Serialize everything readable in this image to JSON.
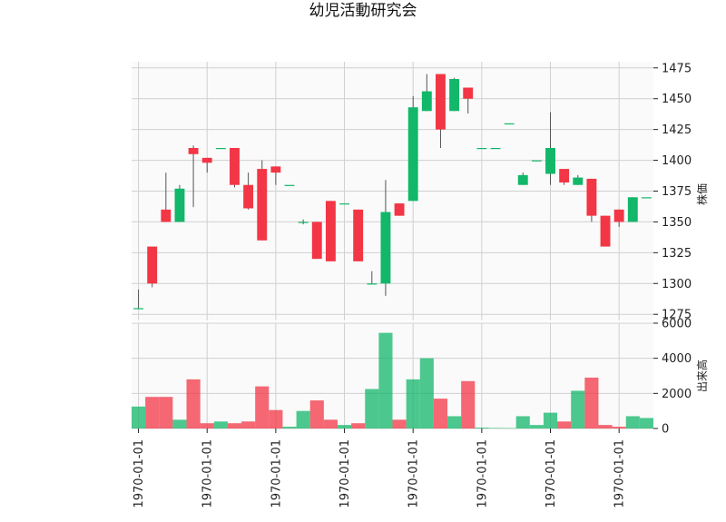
{
  "chart_data": {
    "type": "candlestick",
    "title": "幼児活動研究会",
    "x_tick_labels": [
      "1970-01-01",
      "1970-01-01",
      "1970-01-01",
      "1970-01-01",
      "1970-01-01",
      "1970-01-01",
      "1970-01-01",
      "1970-01-01"
    ],
    "price": {
      "ylabel": "株価",
      "ylim": [
        1270,
        1480
      ],
      "ticks": [
        1275,
        1300,
        1325,
        1350,
        1375,
        1400,
        1425,
        1450,
        1475
      ]
    },
    "volume": {
      "ylabel": "出来高",
      "ylim": [
        0,
        6000
      ],
      "ticks": [
        0,
        2000,
        4000,
        6000
      ]
    },
    "up_color": "#12b76a",
    "down_color": "#f23645",
    "grid": true,
    "candles": [
      {
        "o": 1280,
        "h": 1295,
        "l": 1280,
        "c": 1280,
        "v": 1250
      },
      {
        "o": 1330,
        "h": 1330,
        "l": 1297,
        "c": 1300,
        "v": 1800
      },
      {
        "o": 1360,
        "h": 1390,
        "l": 1350,
        "c": 1350,
        "v": 1800
      },
      {
        "o": 1350,
        "h": 1380,
        "l": 1350,
        "c": 1377,
        "v": 500
      },
      {
        "o": 1410,
        "h": 1412,
        "l": 1362,
        "c": 1405,
        "v": 2800
      },
      {
        "o": 1402,
        "h": 1402,
        "l": 1390,
        "c": 1398,
        "v": 300
      },
      {
        "o": 1410,
        "h": 1410,
        "l": 1410,
        "c": 1410,
        "v": 400
      },
      {
        "o": 1410,
        "h": 1410,
        "l": 1378,
        "c": 1380,
        "v": 300
      },
      {
        "o": 1380,
        "h": 1390,
        "l": 1360,
        "c": 1361,
        "v": 400
      },
      {
        "o": 1393,
        "h": 1400,
        "l": 1335,
        "c": 1335,
        "v": 2400
      },
      {
        "o": 1395,
        "h": 1395,
        "l": 1380,
        "c": 1390,
        "v": 1050
      },
      {
        "o": 1380,
        "h": 1380,
        "l": 1380,
        "c": 1380,
        "v": 100
      },
      {
        "o": 1350,
        "h": 1352,
        "l": 1348,
        "c": 1350,
        "v": 1000
      },
      {
        "o": 1350,
        "h": 1350,
        "l": 1320,
        "c": 1320,
        "v": 1600
      },
      {
        "o": 1367,
        "h": 1367,
        "l": 1318,
        "c": 1318,
        "v": 500
      },
      {
        "o": 1365,
        "h": 1365,
        "l": 1365,
        "c": 1365,
        "v": 200
      },
      {
        "o": 1360,
        "h": 1360,
        "l": 1318,
        "c": 1318,
        "v": 300
      },
      {
        "o": 1300,
        "h": 1310,
        "l": 1300,
        "c": 1300,
        "v": 2250
      },
      {
        "o": 1300,
        "h": 1384,
        "l": 1290,
        "c": 1358,
        "v": 5450
      },
      {
        "o": 1365,
        "h": 1365,
        "l": 1355,
        "c": 1355,
        "v": 500
      },
      {
        "o": 1367,
        "h": 1452,
        "l": 1367,
        "c": 1443,
        "v": 2800
      },
      {
        "o": 1440,
        "h": 1470,
        "l": 1440,
        "c": 1456,
        "v": 4000
      },
      {
        "o": 1470,
        "h": 1470,
        "l": 1410,
        "c": 1425,
        "v": 1700
      },
      {
        "o": 1440,
        "h": 1467,
        "l": 1440,
        "c": 1466,
        "v": 700
      },
      {
        "o": 1459,
        "h": 1459,
        "l": 1438,
        "c": 1450,
        "v": 2700
      },
      {
        "o": 1410,
        "h": 1410,
        "l": 1410,
        "c": 1410,
        "v": 50
      },
      {
        "o": 1410,
        "h": 1410,
        "l": 1410,
        "c": 1410,
        "v": 30
      },
      {
        "o": 1430,
        "h": 1430,
        "l": 1430,
        "c": 1430,
        "v": 20
      },
      {
        "o": 1380,
        "h": 1390,
        "l": 1380,
        "c": 1388,
        "v": 700
      },
      {
        "o": 1400,
        "h": 1400,
        "l": 1400,
        "c": 1400,
        "v": 200
      },
      {
        "o": 1389,
        "h": 1439,
        "l": 1380,
        "c": 1410,
        "v": 900
      },
      {
        "o": 1393,
        "h": 1393,
        "l": 1380,
        "c": 1382,
        "v": 400
      },
      {
        "o": 1380,
        "h": 1388,
        "l": 1380,
        "c": 1386,
        "v": 2150
      },
      {
        "o": 1385,
        "h": 1385,
        "l": 1350,
        "c": 1355,
        "v": 2900
      },
      {
        "o": 1355,
        "h": 1355,
        "l": 1330,
        "c": 1330,
        "v": 200
      },
      {
        "o": 1360,
        "h": 1360,
        "l": 1346,
        "c": 1350,
        "v": 100
      },
      {
        "o": 1350,
        "h": 1370,
        "l": 1350,
        "c": 1370,
        "v": 700
      },
      {
        "o": 1370,
        "h": 1370,
        "l": 1370,
        "c": 1370,
        "v": 600
      }
    ]
  }
}
